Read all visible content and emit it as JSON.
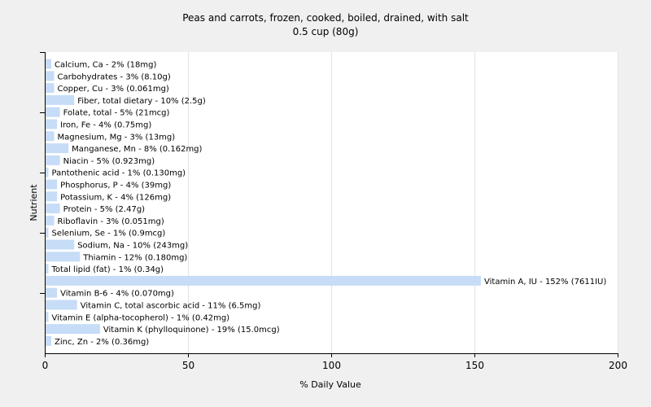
{
  "chart_data": {
    "type": "bar",
    "orientation": "horizontal",
    "title": "Peas and carrots, frozen, cooked, boiled, drained, with salt",
    "subtitle": "0.5 cup (80g)",
    "xlabel": "% Daily Value",
    "ylabel": "Nutrient",
    "xlim": [
      0,
      200
    ],
    "xticks": [
      0,
      50,
      100,
      150,
      200
    ],
    "grid": true,
    "bar_color": "#c6dcf7",
    "categories": [
      "Calcium, Ca",
      "Carbohydrates",
      "Copper, Cu",
      "Fiber, total dietary",
      "Folate, total",
      "Iron, Fe",
      "Magnesium, Mg",
      "Manganese, Mn",
      "Niacin",
      "Pantothenic acid",
      "Phosphorus, P",
      "Potassium, K",
      "Protein",
      "Riboflavin",
      "Selenium, Se",
      "Sodium, Na",
      "Thiamin",
      "Total lipid (fat)",
      "Vitamin A, IU",
      "Vitamin B-6",
      "Vitamin C, total ascorbic acid",
      "Vitamin E (alpha-tocopherol)",
      "Vitamin K (phylloquinone)",
      "Zinc, Zn"
    ],
    "values": [
      2,
      3,
      3,
      10,
      5,
      4,
      3,
      8,
      5,
      1,
      4,
      4,
      5,
      3,
      1,
      10,
      12,
      1,
      152,
      4,
      11,
      1,
      19,
      2
    ],
    "labels": [
      "Calcium, Ca - 2% (18mg)",
      "Carbohydrates - 3% (8.10g)",
      "Copper, Cu - 3% (0.061mg)",
      "Fiber, total dietary - 10% (2.5g)",
      "Folate, total - 5% (21mcg)",
      "Iron, Fe - 4% (0.75mg)",
      "Magnesium, Mg - 3% (13mg)",
      "Manganese, Mn - 8% (0.162mg)",
      "Niacin - 5% (0.923mg)",
      "Pantothenic acid - 1% (0.130mg)",
      "Phosphorus, P - 4% (39mg)",
      "Potassium, K - 4% (126mg)",
      "Protein - 5% (2.47g)",
      "Riboflavin - 3% (0.051mg)",
      "Selenium, Se - 1% (0.9mcg)",
      "Sodium, Na - 10% (243mg)",
      "Thiamin - 12% (0.180mg)",
      "Total lipid (fat) - 1% (0.34g)",
      "Vitamin A, IU - 152% (7611IU)",
      "Vitamin B-6 - 4% (0.070mg)",
      "Vitamin C, total ascorbic acid - 11% (6.5mg)",
      "Vitamin E (alpha-tocopherol) - 1% (0.42mg)",
      "Vitamin K (phylloquinone) - 19% (15.0mcg)",
      "Zinc, Zn - 2% (0.36mg)"
    ]
  }
}
